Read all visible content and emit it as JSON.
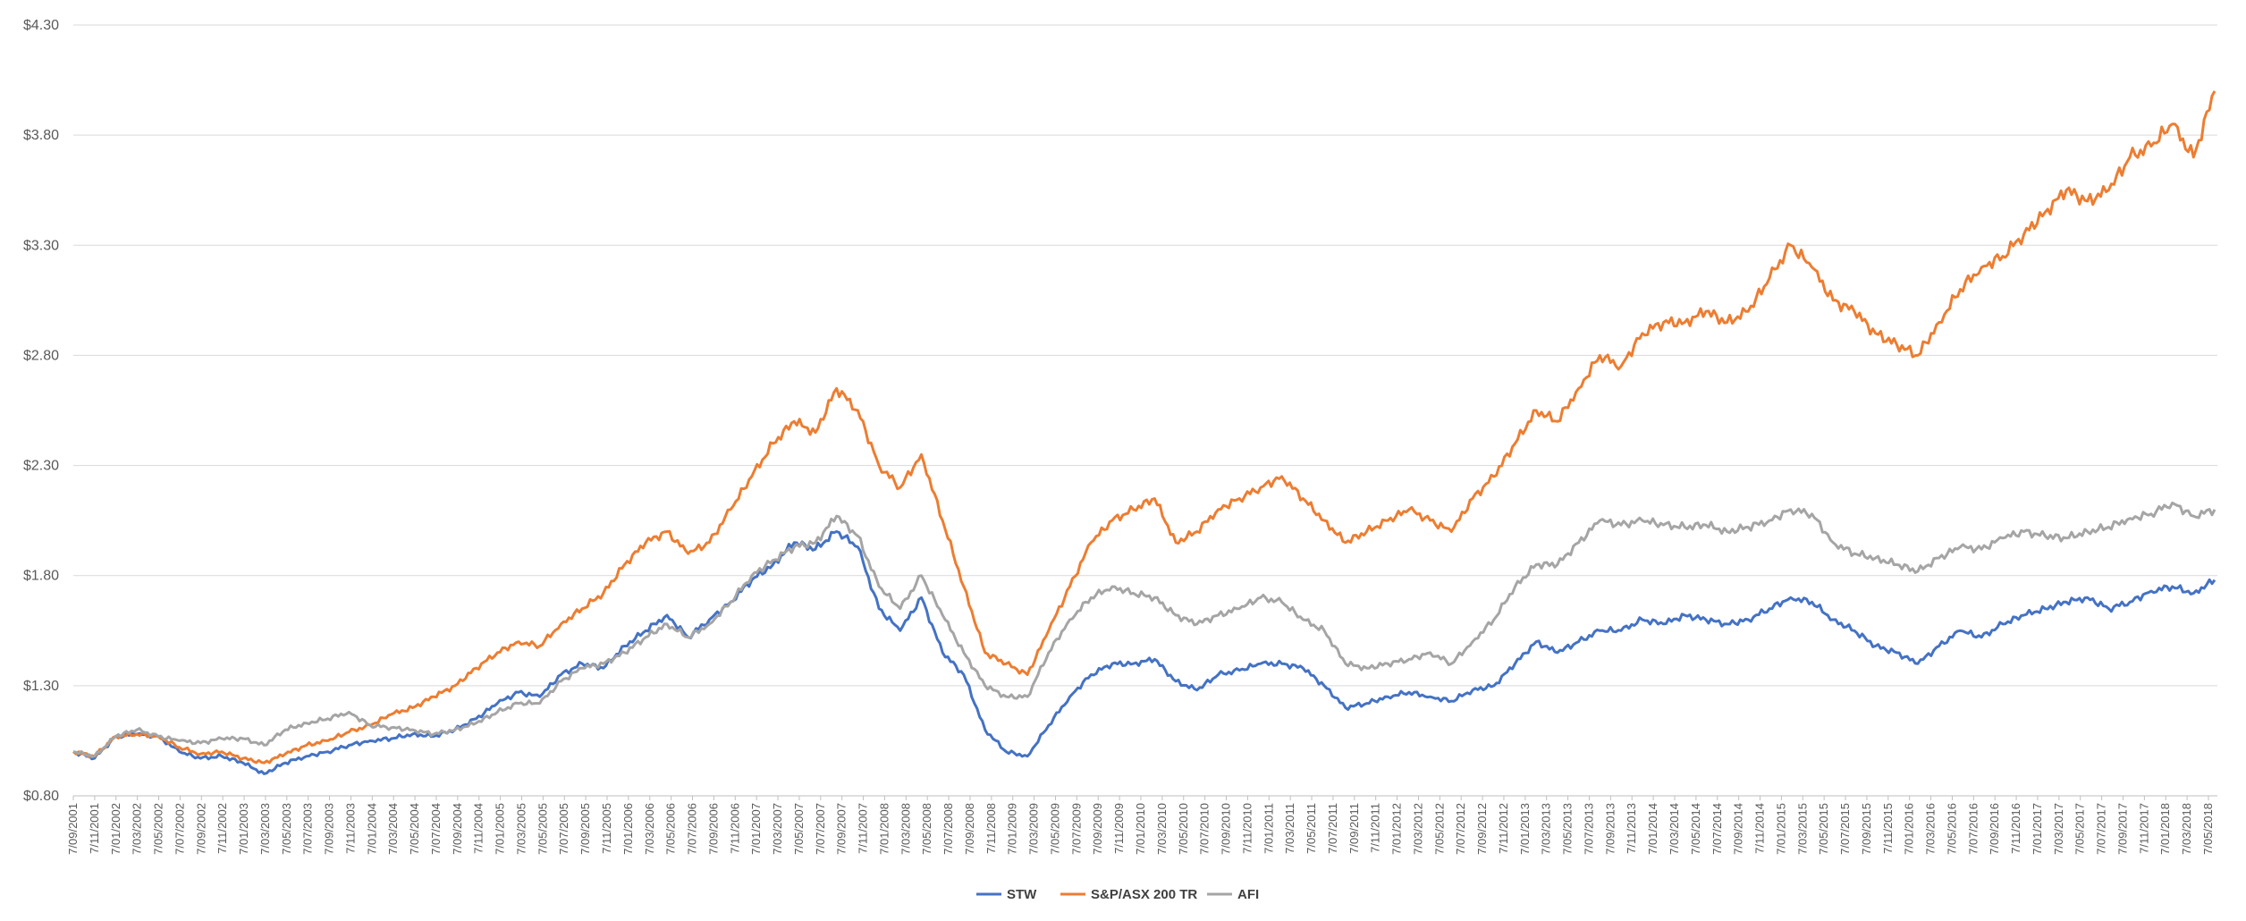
{
  "chart_data": {
    "type": "line",
    "title": "",
    "xlabel": "",
    "ylabel": "",
    "ylim": [
      0.8,
      4.3
    ],
    "yticks": [
      "$0.80",
      "$1.30",
      "$1.80",
      "$2.30",
      "$2.80",
      "$3.30",
      "$3.80",
      "$4.30"
    ],
    "grid": "horizontal",
    "legend_position": "bottom",
    "x_start": "7/09/2001",
    "x_end": "15/08/2018",
    "x_tick_labels": [
      "7/09/2001",
      "7/11/2001",
      "7/01/2002",
      "7/03/2002",
      "7/05/2002",
      "7/07/2002",
      "7/09/2002",
      "7/11/2002",
      "7/01/2003",
      "7/03/2003",
      "7/05/2003",
      "7/07/2003",
      "7/09/2003",
      "7/11/2003",
      "7/01/2004",
      "7/03/2004",
      "7/05/2004",
      "7/07/2004",
      "7/09/2004",
      "7/11/2004",
      "7/01/2005",
      "7/03/2005",
      "7/05/2005",
      "7/07/2005",
      "7/09/2005",
      "7/11/2005",
      "7/01/2006",
      "7/03/2006",
      "7/05/2006",
      "7/07/2006",
      "7/09/2006",
      "7/11/2006",
      "7/01/2007",
      "7/03/2007",
      "7/05/2007",
      "7/07/2007",
      "7/09/2007",
      "7/11/2007",
      "7/01/2008",
      "7/03/2008",
      "7/05/2008",
      "7/07/2008",
      "7/09/2008",
      "7/11/2008",
      "7/01/2009",
      "7/03/2009",
      "7/05/2009",
      "7/07/2009",
      "7/09/2009",
      "7/11/2009",
      "7/01/2010",
      "7/03/2010",
      "7/05/2010",
      "7/07/2010",
      "7/09/2010",
      "7/11/2010",
      "7/01/2011",
      "7/03/2011",
      "7/05/2011",
      "7/07/2011",
      "7/09/2011",
      "7/11/2011",
      "7/01/2012",
      "7/03/2012",
      "7/05/2012",
      "7/07/2012",
      "7/09/2012",
      "7/11/2012",
      "7/01/2013",
      "7/03/2013",
      "7/05/2013",
      "7/07/2013",
      "7/09/2013",
      "7/11/2013",
      "7/01/2014",
      "7/03/2014",
      "7/05/2014",
      "7/07/2014",
      "7/09/2014",
      "7/11/2014",
      "7/01/2015",
      "7/03/2015",
      "7/05/2015",
      "7/07/2015",
      "7/09/2015",
      "7/11/2015",
      "7/01/2016",
      "7/03/2016",
      "7/05/2016",
      "7/07/2016",
      "7/09/2016",
      "7/11/2016",
      "7/01/2017",
      "7/03/2017",
      "7/05/2017",
      "7/07/2017",
      "7/09/2017",
      "7/11/2017",
      "7/01/2018",
      "7/03/2018",
      "7/05/2018"
    ],
    "x": [
      "2001-09",
      "2001-11",
      "2002-01",
      "2002-03",
      "2002-05",
      "2002-07",
      "2002-09",
      "2002-11",
      "2003-01",
      "2003-03",
      "2003-05",
      "2003-07",
      "2003-09",
      "2003-11",
      "2004-01",
      "2004-03",
      "2004-05",
      "2004-07",
      "2004-09",
      "2004-11",
      "2005-01",
      "2005-03",
      "2005-05",
      "2005-07",
      "2005-09",
      "2005-11",
      "2006-01",
      "2006-03",
      "2006-05",
      "2006-07",
      "2006-09",
      "2006-11",
      "2007-01",
      "2007-03",
      "2007-05",
      "2007-07",
      "2007-09",
      "2007-11",
      "2008-01",
      "2008-03",
      "2008-05",
      "2008-07",
      "2008-09",
      "2008-11",
      "2009-01",
      "2009-03",
      "2009-05",
      "2009-07",
      "2009-09",
      "2009-11",
      "2010-01",
      "2010-03",
      "2010-05",
      "2010-07",
      "2010-09",
      "2010-11",
      "2011-01",
      "2011-03",
      "2011-05",
      "2011-07",
      "2011-09",
      "2011-11",
      "2012-01",
      "2012-03",
      "2012-05",
      "2012-07",
      "2012-09",
      "2012-11",
      "2013-01",
      "2013-03",
      "2013-05",
      "2013-07",
      "2013-09",
      "2013-11",
      "2014-01",
      "2014-03",
      "2014-05",
      "2014-07",
      "2014-09",
      "2014-11",
      "2015-01",
      "2015-03",
      "2015-05",
      "2015-07",
      "2015-09",
      "2015-11",
      "2016-01",
      "2016-03",
      "2016-05",
      "2016-07",
      "2016-09",
      "2016-11",
      "2017-01",
      "2017-03",
      "2017-05",
      "2017-07",
      "2017-09",
      "2017-11",
      "2018-01",
      "2018-03",
      "2018-05",
      "2018-07"
    ],
    "series": [
      {
        "name": "STW",
        "color": "#4472c4",
        "values": [
          1.0,
          0.97,
          1.07,
          1.08,
          1.07,
          1.0,
          0.97,
          0.98,
          0.95,
          0.9,
          0.95,
          0.98,
          1.0,
          1.03,
          1.05,
          1.06,
          1.08,
          1.07,
          1.1,
          1.15,
          1.22,
          1.27,
          1.25,
          1.35,
          1.4,
          1.38,
          1.48,
          1.55,
          1.62,
          1.52,
          1.6,
          1.68,
          1.78,
          1.85,
          1.95,
          1.92,
          2.0,
          1.93,
          1.65,
          1.55,
          1.7,
          1.45,
          1.35,
          1.1,
          1.0,
          0.98,
          1.12,
          1.25,
          1.35,
          1.4,
          1.4,
          1.42,
          1.32,
          1.28,
          1.35,
          1.37,
          1.4,
          1.4,
          1.38,
          1.3,
          1.2,
          1.22,
          1.25,
          1.27,
          1.25,
          1.23,
          1.28,
          1.3,
          1.4,
          1.5,
          1.45,
          1.5,
          1.55,
          1.55,
          1.6,
          1.58,
          1.62,
          1.6,
          1.58,
          1.6,
          1.65,
          1.7,
          1.68,
          1.6,
          1.55,
          1.48,
          1.45,
          1.4,
          1.48,
          1.55,
          1.52,
          1.58,
          1.62,
          1.65,
          1.68,
          1.7,
          1.65,
          1.68,
          1.73,
          1.75,
          1.72,
          1.78
        ]
      },
      {
        "name": "S&P/ASX 200 TR",
        "color": "#ed7d31",
        "values": [
          1.0,
          0.98,
          1.07,
          1.08,
          1.07,
          1.02,
          0.99,
          1.0,
          0.97,
          0.95,
          0.99,
          1.03,
          1.05,
          1.09,
          1.12,
          1.17,
          1.2,
          1.25,
          1.3,
          1.38,
          1.45,
          1.5,
          1.48,
          1.58,
          1.65,
          1.72,
          1.85,
          1.95,
          2.0,
          1.9,
          1.95,
          2.1,
          2.25,
          2.4,
          2.5,
          2.45,
          2.65,
          2.55,
          2.3,
          2.2,
          2.35,
          2.05,
          1.75,
          1.45,
          1.4,
          1.35,
          1.55,
          1.75,
          1.95,
          2.05,
          2.1,
          2.15,
          1.95,
          2.0,
          2.1,
          2.15,
          2.2,
          2.25,
          2.15,
          2.05,
          1.95,
          2.0,
          2.05,
          2.1,
          2.05,
          2.0,
          2.15,
          2.25,
          2.4,
          2.55,
          2.5,
          2.65,
          2.8,
          2.75,
          2.9,
          2.95,
          2.95,
          3.0,
          2.95,
          3.0,
          3.15,
          3.3,
          3.2,
          3.05,
          3.0,
          2.9,
          2.85,
          2.8,
          2.95,
          3.1,
          3.2,
          3.25,
          3.35,
          3.45,
          3.55,
          3.5,
          3.55,
          3.7,
          3.75,
          3.85,
          3.7,
          4.0
        ]
      },
      {
        "name": "AFI",
        "color": "#a5a5a5",
        "values": [
          1.0,
          0.98,
          1.07,
          1.1,
          1.07,
          1.05,
          1.04,
          1.06,
          1.06,
          1.03,
          1.1,
          1.13,
          1.15,
          1.18,
          1.12,
          1.11,
          1.1,
          1.08,
          1.1,
          1.13,
          1.18,
          1.22,
          1.22,
          1.32,
          1.38,
          1.4,
          1.45,
          1.52,
          1.58,
          1.52,
          1.58,
          1.68,
          1.8,
          1.87,
          1.93,
          1.95,
          2.07,
          1.98,
          1.75,
          1.65,
          1.8,
          1.62,
          1.45,
          1.3,
          1.25,
          1.25,
          1.45,
          1.6,
          1.7,
          1.75,
          1.72,
          1.7,
          1.62,
          1.58,
          1.62,
          1.65,
          1.7,
          1.68,
          1.6,
          1.55,
          1.4,
          1.38,
          1.4,
          1.42,
          1.45,
          1.4,
          1.5,
          1.6,
          1.75,
          1.85,
          1.85,
          1.95,
          2.05,
          2.03,
          2.05,
          2.03,
          2.02,
          2.03,
          2.0,
          2.02,
          2.05,
          2.1,
          2.08,
          1.95,
          1.9,
          1.88,
          1.85,
          1.82,
          1.88,
          1.93,
          1.92,
          1.97,
          2.0,
          1.98,
          1.97,
          2.0,
          2.02,
          2.06,
          2.08,
          2.13,
          2.07,
          2.1
        ]
      }
    ]
  }
}
